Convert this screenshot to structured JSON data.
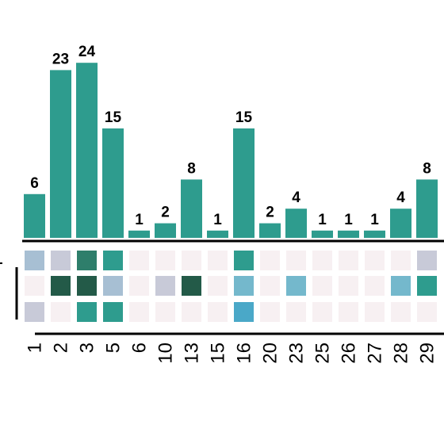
{
  "chart_data": {
    "type": "bar",
    "categories": [
      "1",
      "2",
      "3",
      "5",
      "6",
      "10",
      "13",
      "15",
      "16",
      "20",
      "23",
      "25",
      "26",
      "27",
      "28",
      "29"
    ],
    "values": [
      6,
      23,
      24,
      15,
      1,
      2,
      8,
      1,
      15,
      2,
      4,
      1,
      1,
      1,
      4,
      8
    ],
    "data_labels": [
      "6",
      "23",
      "24",
      "15",
      "1",
      "2",
      "8",
      "1",
      "15",
      "2",
      "4",
      "1",
      "1",
      "1",
      "4",
      "8"
    ],
    "ylim": [
      0,
      24
    ],
    "bar_color": "#2e9c8e",
    "heatmap": {
      "rows": 3,
      "levels": [
        [
          2,
          1,
          7,
          6,
          0,
          0,
          0,
          0,
          6,
          0,
          0,
          0,
          0,
          0,
          0,
          1
        ],
        [
          0,
          9,
          9,
          2,
          0,
          1,
          9,
          0,
          4,
          0,
          4,
          0,
          0,
          0,
          4,
          6
        ],
        [
          1,
          0,
          6,
          6,
          0,
          0,
          0,
          0,
          5,
          0,
          0,
          0,
          0,
          0,
          0,
          0
        ]
      ],
      "palette": {
        "0": "#f7f0f2",
        "1": "#c8cad8",
        "2": "#a7bfd3",
        "4": "#74b8cc",
        "5": "#4aa8c8",
        "6": "#2e9c8e",
        "7": "#2e7e6b",
        "9": "#235a48"
      }
    }
  }
}
